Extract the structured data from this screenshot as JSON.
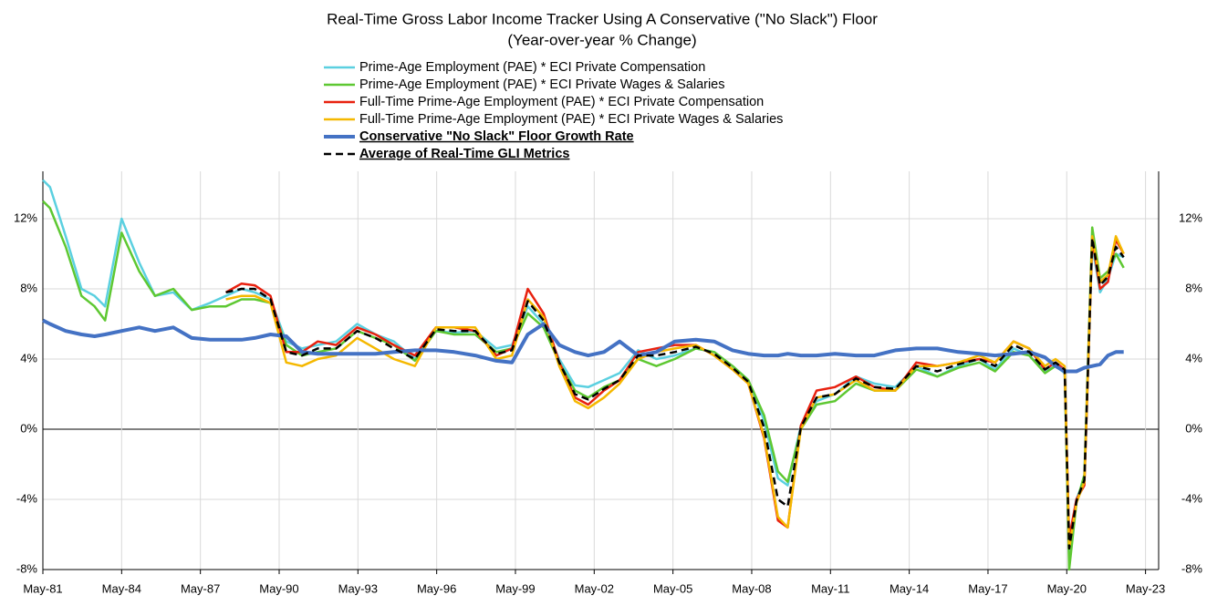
{
  "chart_data": {
    "type": "line",
    "title": "Real-Time Gross Labor Income Tracker Using A Conservative (\"No Slack\") Floor",
    "subtitle": "(Year-over-year % Change)",
    "x": [
      1981.33,
      1981.6,
      1982.2,
      1982.8,
      1983.3,
      1983.7,
      1984.33,
      1985.0,
      1985.6,
      1986.3,
      1987.0,
      1987.7,
      1988.3,
      1988.9,
      1989.4,
      1990.0,
      1990.6,
      1991.2,
      1991.8,
      1992.5,
      1993.3,
      1994.0,
      1994.7,
      1995.5,
      1996.3,
      1997.0,
      1997.8,
      1998.6,
      1999.2,
      1999.8,
      2000.4,
      2001.0,
      2001.6,
      2002.1,
      2002.7,
      2003.3,
      2004.0,
      2004.7,
      2005.4,
      2006.2,
      2006.9,
      2007.6,
      2008.2,
      2008.8,
      2009.33,
      2009.7,
      2010.2,
      2010.8,
      2011.5,
      2012.3,
      2013.0,
      2013.8,
      2014.6,
      2015.4,
      2016.2,
      2017.0,
      2017.6,
      2018.3,
      2018.9,
      2019.5,
      2019.9,
      2020.25,
      2020.42,
      2020.7,
      2021.0,
      2021.3,
      2021.6,
      2021.9,
      2022.2,
      2022.5
    ],
    "series": [
      {
        "name": "Prime-Age Employment (PAE) * ECI Private Compensation",
        "color": "#5bd0e0",
        "line_width": 2.5,
        "dashed": false,
        "emphasis": false,
        "values": [
          14.2,
          13.8,
          11.0,
          8.0,
          7.6,
          7.0,
          12.0,
          9.5,
          7.6,
          7.8,
          6.8,
          7.2,
          7.6,
          8.0,
          7.8,
          7.4,
          5.0,
          4.6,
          4.8,
          5.0,
          6.0,
          5.4,
          5.0,
          4.0,
          5.6,
          5.5,
          5.6,
          4.6,
          4.8,
          7.0,
          6.0,
          4.0,
          2.5,
          2.4,
          2.8,
          3.2,
          4.5,
          4.0,
          4.2,
          4.6,
          4.4,
          3.6,
          2.8,
          0.5,
          -2.8,
          -3.2,
          0.2,
          1.6,
          2.0,
          3.0,
          2.6,
          2.4,
          3.6,
          3.0,
          3.6,
          4.0,
          3.4,
          4.6,
          4.2,
          3.3,
          3.6,
          3.2,
          -7.5,
          -4.0,
          -2.8,
          10.5,
          7.8,
          8.6,
          10.0,
          9.8
        ]
      },
      {
        "name": "Prime-Age Employment (PAE) * ECI Private Wages & Salaries",
        "color": "#5ec832",
        "line_width": 2.5,
        "dashed": false,
        "emphasis": false,
        "values": [
          13.0,
          12.6,
          10.4,
          7.6,
          7.0,
          6.2,
          11.2,
          9.0,
          7.6,
          8.0,
          6.8,
          7.0,
          7.0,
          7.4,
          7.4,
          7.2,
          4.8,
          4.2,
          4.4,
          4.6,
          5.6,
          5.2,
          4.8,
          3.9,
          5.6,
          5.4,
          5.4,
          4.4,
          4.6,
          6.6,
          5.8,
          3.8,
          2.2,
          1.8,
          2.4,
          2.8,
          4.0,
          3.6,
          4.0,
          4.6,
          4.4,
          3.6,
          2.8,
          0.8,
          -2.4,
          -3.0,
          0.0,
          1.4,
          1.6,
          2.6,
          2.2,
          2.2,
          3.4,
          3.0,
          3.5,
          3.8,
          3.3,
          4.4,
          4.2,
          3.2,
          3.6,
          3.4,
          -8.0,
          -4.2,
          -2.6,
          11.5,
          8.6,
          9.0,
          10.0,
          9.2
        ]
      },
      {
        "name": "Full-Time Prime-Age Employment (PAE) * ECI Private Compensation",
        "color": "#e8210f",
        "line_width": 2.5,
        "dashed": false,
        "emphasis": false,
        "values": [
          null,
          null,
          null,
          null,
          null,
          null,
          null,
          null,
          null,
          null,
          null,
          null,
          7.8,
          8.3,
          8.2,
          7.6,
          4.4,
          4.4,
          5.0,
          4.8,
          5.8,
          5.4,
          4.8,
          4.2,
          5.8,
          5.8,
          5.6,
          4.2,
          4.6,
          8.0,
          6.6,
          3.8,
          1.8,
          1.4,
          2.2,
          2.8,
          4.4,
          4.6,
          4.8,
          4.8,
          4.2,
          3.4,
          2.6,
          -0.5,
          -5.2,
          -5.6,
          0.2,
          2.2,
          2.4,
          3.0,
          2.4,
          2.2,
          3.8,
          3.6,
          3.8,
          4.0,
          3.8,
          5.0,
          4.6,
          3.4,
          3.8,
          3.4,
          -6.2,
          -4.0,
          -3.2,
          10.8,
          8.0,
          8.4,
          10.8,
          10.0
        ]
      },
      {
        "name": "Full-Time Prime-Age Employment (PAE) * ECI Private Wages & Salaries",
        "color": "#f5b800",
        "line_width": 2.5,
        "dashed": false,
        "emphasis": false,
        "values": [
          null,
          null,
          null,
          null,
          null,
          null,
          null,
          null,
          null,
          null,
          null,
          null,
          7.4,
          7.6,
          7.6,
          7.2,
          3.8,
          3.6,
          4.0,
          4.2,
          5.2,
          4.6,
          4.0,
          3.6,
          5.8,
          5.8,
          5.8,
          4.0,
          4.2,
          7.4,
          6.4,
          3.6,
          1.6,
          1.2,
          1.8,
          2.6,
          4.0,
          4.4,
          4.6,
          4.8,
          4.2,
          3.4,
          2.6,
          -0.4,
          -5.0,
          -5.6,
          0.0,
          1.8,
          2.0,
          2.8,
          2.2,
          2.2,
          3.6,
          3.6,
          3.8,
          4.2,
          3.8,
          5.0,
          4.6,
          3.6,
          4.0,
          3.6,
          -6.8,
          -4.2,
          -3.0,
          11.0,
          8.4,
          8.8,
          11.0,
          10.0
        ]
      },
      {
        "name": "Conservative \"No Slack\" Floor Growth Rate",
        "color": "#4472c4",
        "line_width": 4,
        "dashed": false,
        "emphasis": true,
        "values": [
          6.2,
          6.0,
          5.6,
          5.4,
          5.3,
          5.4,
          5.6,
          5.8,
          5.6,
          5.8,
          5.2,
          5.1,
          5.1,
          5.1,
          5.2,
          5.4,
          5.3,
          4.4,
          4.3,
          4.3,
          4.3,
          4.3,
          4.4,
          4.5,
          4.5,
          4.4,
          4.2,
          3.9,
          3.8,
          5.4,
          6.0,
          4.8,
          4.4,
          4.2,
          4.4,
          5.0,
          4.2,
          4.4,
          5.0,
          5.1,
          5.0,
          4.5,
          4.3,
          4.2,
          4.2,
          4.3,
          4.2,
          4.2,
          4.3,
          4.2,
          4.2,
          4.5,
          4.6,
          4.6,
          4.4,
          4.3,
          4.2,
          4.3,
          4.4,
          4.1,
          3.6,
          3.3,
          3.3,
          3.3,
          3.5,
          3.6,
          3.7,
          4.2,
          4.4,
          4.4
        ]
      },
      {
        "name": "Average of Real-Time GLI Metrics",
        "color": "#000000",
        "line_width": 2.5,
        "dashed": true,
        "emphasis": true,
        "values": [
          null,
          null,
          null,
          null,
          null,
          null,
          null,
          null,
          null,
          null,
          null,
          null,
          7.8,
          8.0,
          8.0,
          7.4,
          4.4,
          4.2,
          4.6,
          4.6,
          5.6,
          5.2,
          4.6,
          4.0,
          5.7,
          5.6,
          5.6,
          4.3,
          4.5,
          7.3,
          6.2,
          3.8,
          2.0,
          1.7,
          2.3,
          2.8,
          4.2,
          4.2,
          4.4,
          4.7,
          4.3,
          3.5,
          2.7,
          0.1,
          -4.0,
          -4.4,
          0.1,
          1.8,
          2.0,
          2.9,
          2.4,
          2.3,
          3.6,
          3.3,
          3.7,
          4.0,
          3.6,
          4.8,
          4.4,
          3.4,
          3.8,
          3.4,
          -6.8,
          -4.1,
          -2.9,
          10.9,
          8.2,
          8.7,
          10.4,
          9.8
        ]
      }
    ],
    "xlim": [
      1981.33,
      2023.83
    ],
    "xticks": [
      {
        "value": 1981.33,
        "label": "May-81"
      },
      {
        "value": 1984.33,
        "label": "May-84"
      },
      {
        "value": 1987.33,
        "label": "May-87"
      },
      {
        "value": 1990.33,
        "label": "May-90"
      },
      {
        "value": 1993.33,
        "label": "May-93"
      },
      {
        "value": 1996.33,
        "label": "May-96"
      },
      {
        "value": 1999.33,
        "label": "May-99"
      },
      {
        "value": 2002.33,
        "label": "May-02"
      },
      {
        "value": 2005.33,
        "label": "May-05"
      },
      {
        "value": 2008.33,
        "label": "May-08"
      },
      {
        "value": 2011.33,
        "label": "May-11"
      },
      {
        "value": 2014.33,
        "label": "May-14"
      },
      {
        "value": 2017.33,
        "label": "May-17"
      },
      {
        "value": 2020.33,
        "label": "May-20"
      },
      {
        "value": 2023.33,
        "label": "May-23"
      }
    ],
    "ylim": [
      -8,
      14.7
    ],
    "yticks": [
      {
        "value": -8,
        "label": "-8%"
      },
      {
        "value": -4,
        "label": "-4%"
      },
      {
        "value": 0,
        "label": "0%"
      },
      {
        "value": 4,
        "label": "4%"
      },
      {
        "value": 8,
        "label": "8%"
      },
      {
        "value": 12,
        "label": "12%"
      }
    ],
    "grid": true,
    "legend": "top"
  }
}
